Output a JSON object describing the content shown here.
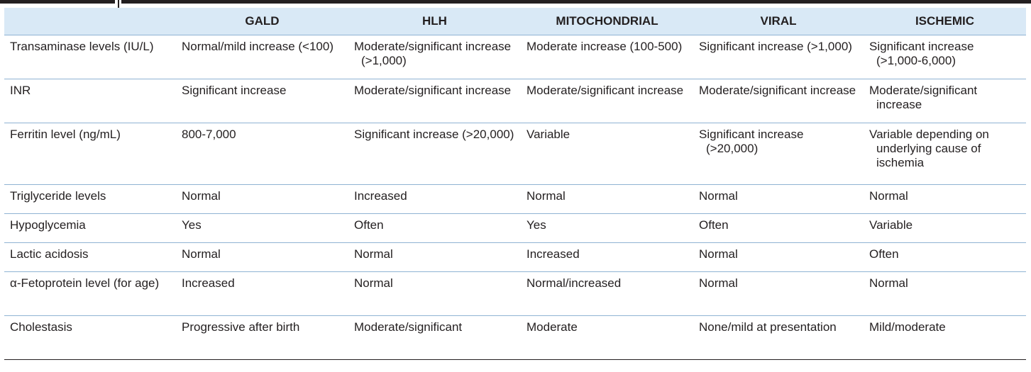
{
  "headers": [
    "",
    "GALD",
    "HLH",
    "MITOCHONDRIAL",
    "VIRAL",
    "ISCHEMIC"
  ],
  "rows": [
    [
      "Transaminase levels (IU/L)",
      "Normal/mild increase (<100)",
      "Moderate/significant increase (>1,000)",
      "Moderate increase (100-500)",
      "Significant increase (>1,000)",
      "Significant increase (>1,000-6,000)"
    ],
    [
      "INR",
      "Significant increase",
      "Moderate/significant increase",
      "Moderate/significant increase",
      "Moderate/significant increase",
      "Moderate/significant increase"
    ],
    [
      "Ferritin level (ng/mL)",
      "800-7,000",
      "Significant increase (>20,000)",
      "Variable",
      "Significant increase (>20,000)",
      "Variable depending on underlying cause of ischemia"
    ],
    [
      "Triglyceride levels",
      "Normal",
      "Increased",
      "Normal",
      "Normal",
      "Normal"
    ],
    [
      "Hypoglycemia",
      "Yes",
      "Often",
      "Yes",
      "Often",
      "Variable"
    ],
    [
      "Lactic acidosis",
      "Normal",
      "Normal",
      "Increased",
      "Normal",
      "Often"
    ],
    [
      "α-Fetoprotein level (for age)",
      "Increased",
      "Normal",
      "Normal/increased",
      "Normal",
      "Normal"
    ],
    [
      "Cholestasis",
      "Progressive after birth",
      "Moderate/significant",
      "Moderate",
      "None/mild at presentation",
      "Mild/moderate"
    ]
  ],
  "colors": {
    "header_bg": "#d9e9f6",
    "rule": "#8fb3d3",
    "text": "#231f20"
  }
}
